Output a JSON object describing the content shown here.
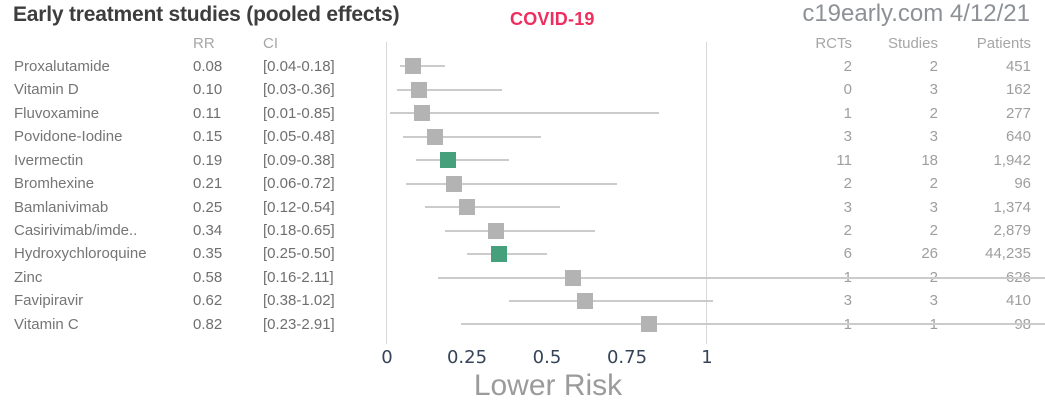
{
  "header": {
    "title": "Early treatment studies (pooled effects)",
    "badge": "COVID-19",
    "source": "c19early.com 4/12/21"
  },
  "columns": {
    "rr": "RR",
    "ci": "CI",
    "rcts": "RCTs",
    "studies": "Studies",
    "patients": "Patients"
  },
  "colors": {
    "accent_green": "#46a07c",
    "marker_gray": "#b3b3b3",
    "badge_pink": "#ee2e5e",
    "ci_line_gray": "#cbcbcb"
  },
  "chart_data": {
    "type": "forest",
    "title": "Early treatment studies (pooled effects)",
    "xlabel": "Lower Risk",
    "xlim": [
      0,
      1
    ],
    "ticks": [
      {
        "label": "0",
        "value": 0
      },
      {
        "label": "0.25",
        "value": 0.25
      },
      {
        "label": "0.5",
        "value": 0.5
      },
      {
        "label": "0.75",
        "value": 0.75
      },
      {
        "label": "1",
        "value": 1
      }
    ],
    "rows": [
      {
        "label": "Proxalutamide",
        "rr": 0.08,
        "rr_text": "0.08",
        "ci_text": "[0.04-0.18]",
        "ci_low": 0.04,
        "ci_high": 0.18,
        "rcts": "2",
        "studies": "2",
        "patients": "451",
        "highlight": false
      },
      {
        "label": "Vitamin D",
        "rr": 0.1,
        "rr_text": "0.10",
        "ci_text": "[0.03-0.36]",
        "ci_low": 0.03,
        "ci_high": 0.36,
        "rcts": "0",
        "studies": "3",
        "patients": "162",
        "highlight": false
      },
      {
        "label": "Fluvoxamine",
        "rr": 0.11,
        "rr_text": "0.11",
        "ci_text": "[0.01-0.85]",
        "ci_low": 0.01,
        "ci_high": 0.85,
        "rcts": "1",
        "studies": "2",
        "patients": "277",
        "highlight": false
      },
      {
        "label": "Povidone-Iodine",
        "rr": 0.15,
        "rr_text": "0.15",
        "ci_text": "[0.05-0.48]",
        "ci_low": 0.05,
        "ci_high": 0.48,
        "rcts": "3",
        "studies": "3",
        "patients": "640",
        "highlight": false
      },
      {
        "label": "Ivermectin",
        "rr": 0.19,
        "rr_text": "0.19",
        "ci_text": "[0.09-0.38]",
        "ci_low": 0.09,
        "ci_high": 0.38,
        "rcts": "11",
        "studies": "18",
        "patients": "1,942",
        "highlight": true
      },
      {
        "label": "Bromhexine",
        "rr": 0.21,
        "rr_text": "0.21",
        "ci_text": "[0.06-0.72]",
        "ci_low": 0.06,
        "ci_high": 0.72,
        "rcts": "2",
        "studies": "2",
        "patients": "96",
        "highlight": false
      },
      {
        "label": "Bamlanivimab",
        "rr": 0.25,
        "rr_text": "0.25",
        "ci_text": "[0.12-0.54]",
        "ci_low": 0.12,
        "ci_high": 0.54,
        "rcts": "3",
        "studies": "3",
        "patients": "1,374",
        "highlight": false
      },
      {
        "label": "Casirivimab/imde..",
        "rr": 0.34,
        "rr_text": "0.34",
        "ci_text": "[0.18-0.65]",
        "ci_low": 0.18,
        "ci_high": 0.65,
        "rcts": "2",
        "studies": "2",
        "patients": "2,879",
        "highlight": false
      },
      {
        "label": "Hydroxychloroquine",
        "rr": 0.35,
        "rr_text": "0.35",
        "ci_text": "[0.25-0.50]",
        "ci_low": 0.25,
        "ci_high": 0.5,
        "rcts": "6",
        "studies": "26",
        "patients": "44,235",
        "highlight": true
      },
      {
        "label": "Zinc",
        "rr": 0.58,
        "rr_text": "0.58",
        "ci_text": "[0.16-2.11]",
        "ci_low": 0.16,
        "ci_high": 2.11,
        "rcts": "1",
        "studies": "2",
        "patients": "626",
        "highlight": false
      },
      {
        "label": "Favipiravir",
        "rr": 0.62,
        "rr_text": "0.62",
        "ci_text": "[0.38-1.02]",
        "ci_low": 0.38,
        "ci_high": 1.02,
        "rcts": "3",
        "studies": "3",
        "patients": "410",
        "highlight": false
      },
      {
        "label": "Vitamin C",
        "rr": 0.82,
        "rr_text": "0.82",
        "ci_text": "[0.23-2.91]",
        "ci_low": 0.23,
        "ci_high": 2.91,
        "rcts": "1",
        "studies": "1",
        "patients": "98",
        "highlight": false
      }
    ]
  }
}
